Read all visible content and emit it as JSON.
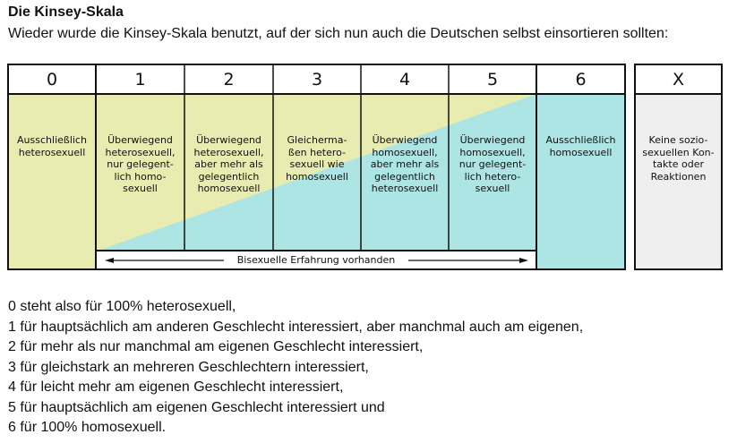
{
  "title": "Die Kinsey-Skala",
  "subtitle": "Wieder wurde die Kinsey-Skala benutzt, auf der sich nun auch die Deutschen selbst einsortieren sollten:",
  "scale": [
    {
      "label": "0",
      "text": "Ausschließlich heterosexuell"
    },
    {
      "label": "1",
      "text": "Überwiegend heterosexuell, nur gelegent-lich homo-sexuell"
    },
    {
      "label": "2",
      "text": "Überwiegend heterosexuell, aber mehr als gelegentlich homosexuell"
    },
    {
      "label": "3",
      "text": "Gleicherma-ßen hetero-sexuell wie homosexuell"
    },
    {
      "label": "4",
      "text": "Überwiegend homosexuell, aber mehr als gelegentlich heterosexuell"
    },
    {
      "label": "5",
      "text": "Überwiegend homosexuell, nur gelegent-lich hetero-sexuell"
    },
    {
      "label": "6",
      "text": "Ausschließlich homosexuell"
    }
  ],
  "x_category": {
    "label": "X",
    "text": "Keine sozio-sexuellen Kon-takte oder Reaktionen"
  },
  "bisexual_label": "Bisexuelle Erfahrung vorhanden",
  "colors": {
    "heterosexual": "#e8ecb0",
    "homosexual": "#ace5e3",
    "x": "#eeefee"
  },
  "explanations": [
    "0 steht also für 100% heterosexuell,",
    "1 für hauptsächlich am anderen Geschlecht interessiert, aber manchmal auch am eigenen,",
    "2 für mehr als nur manchmal am eigenen Geschlecht interessiert,",
    "3 für gleichstark an mehreren Geschlechtern interessiert,",
    "4 für leicht mehr am eigenen Geschlecht interessiert,",
    "5 für hauptsächlich am eigenen Geschlecht interessiert und",
    "6 für 100% homosexuell."
  ]
}
